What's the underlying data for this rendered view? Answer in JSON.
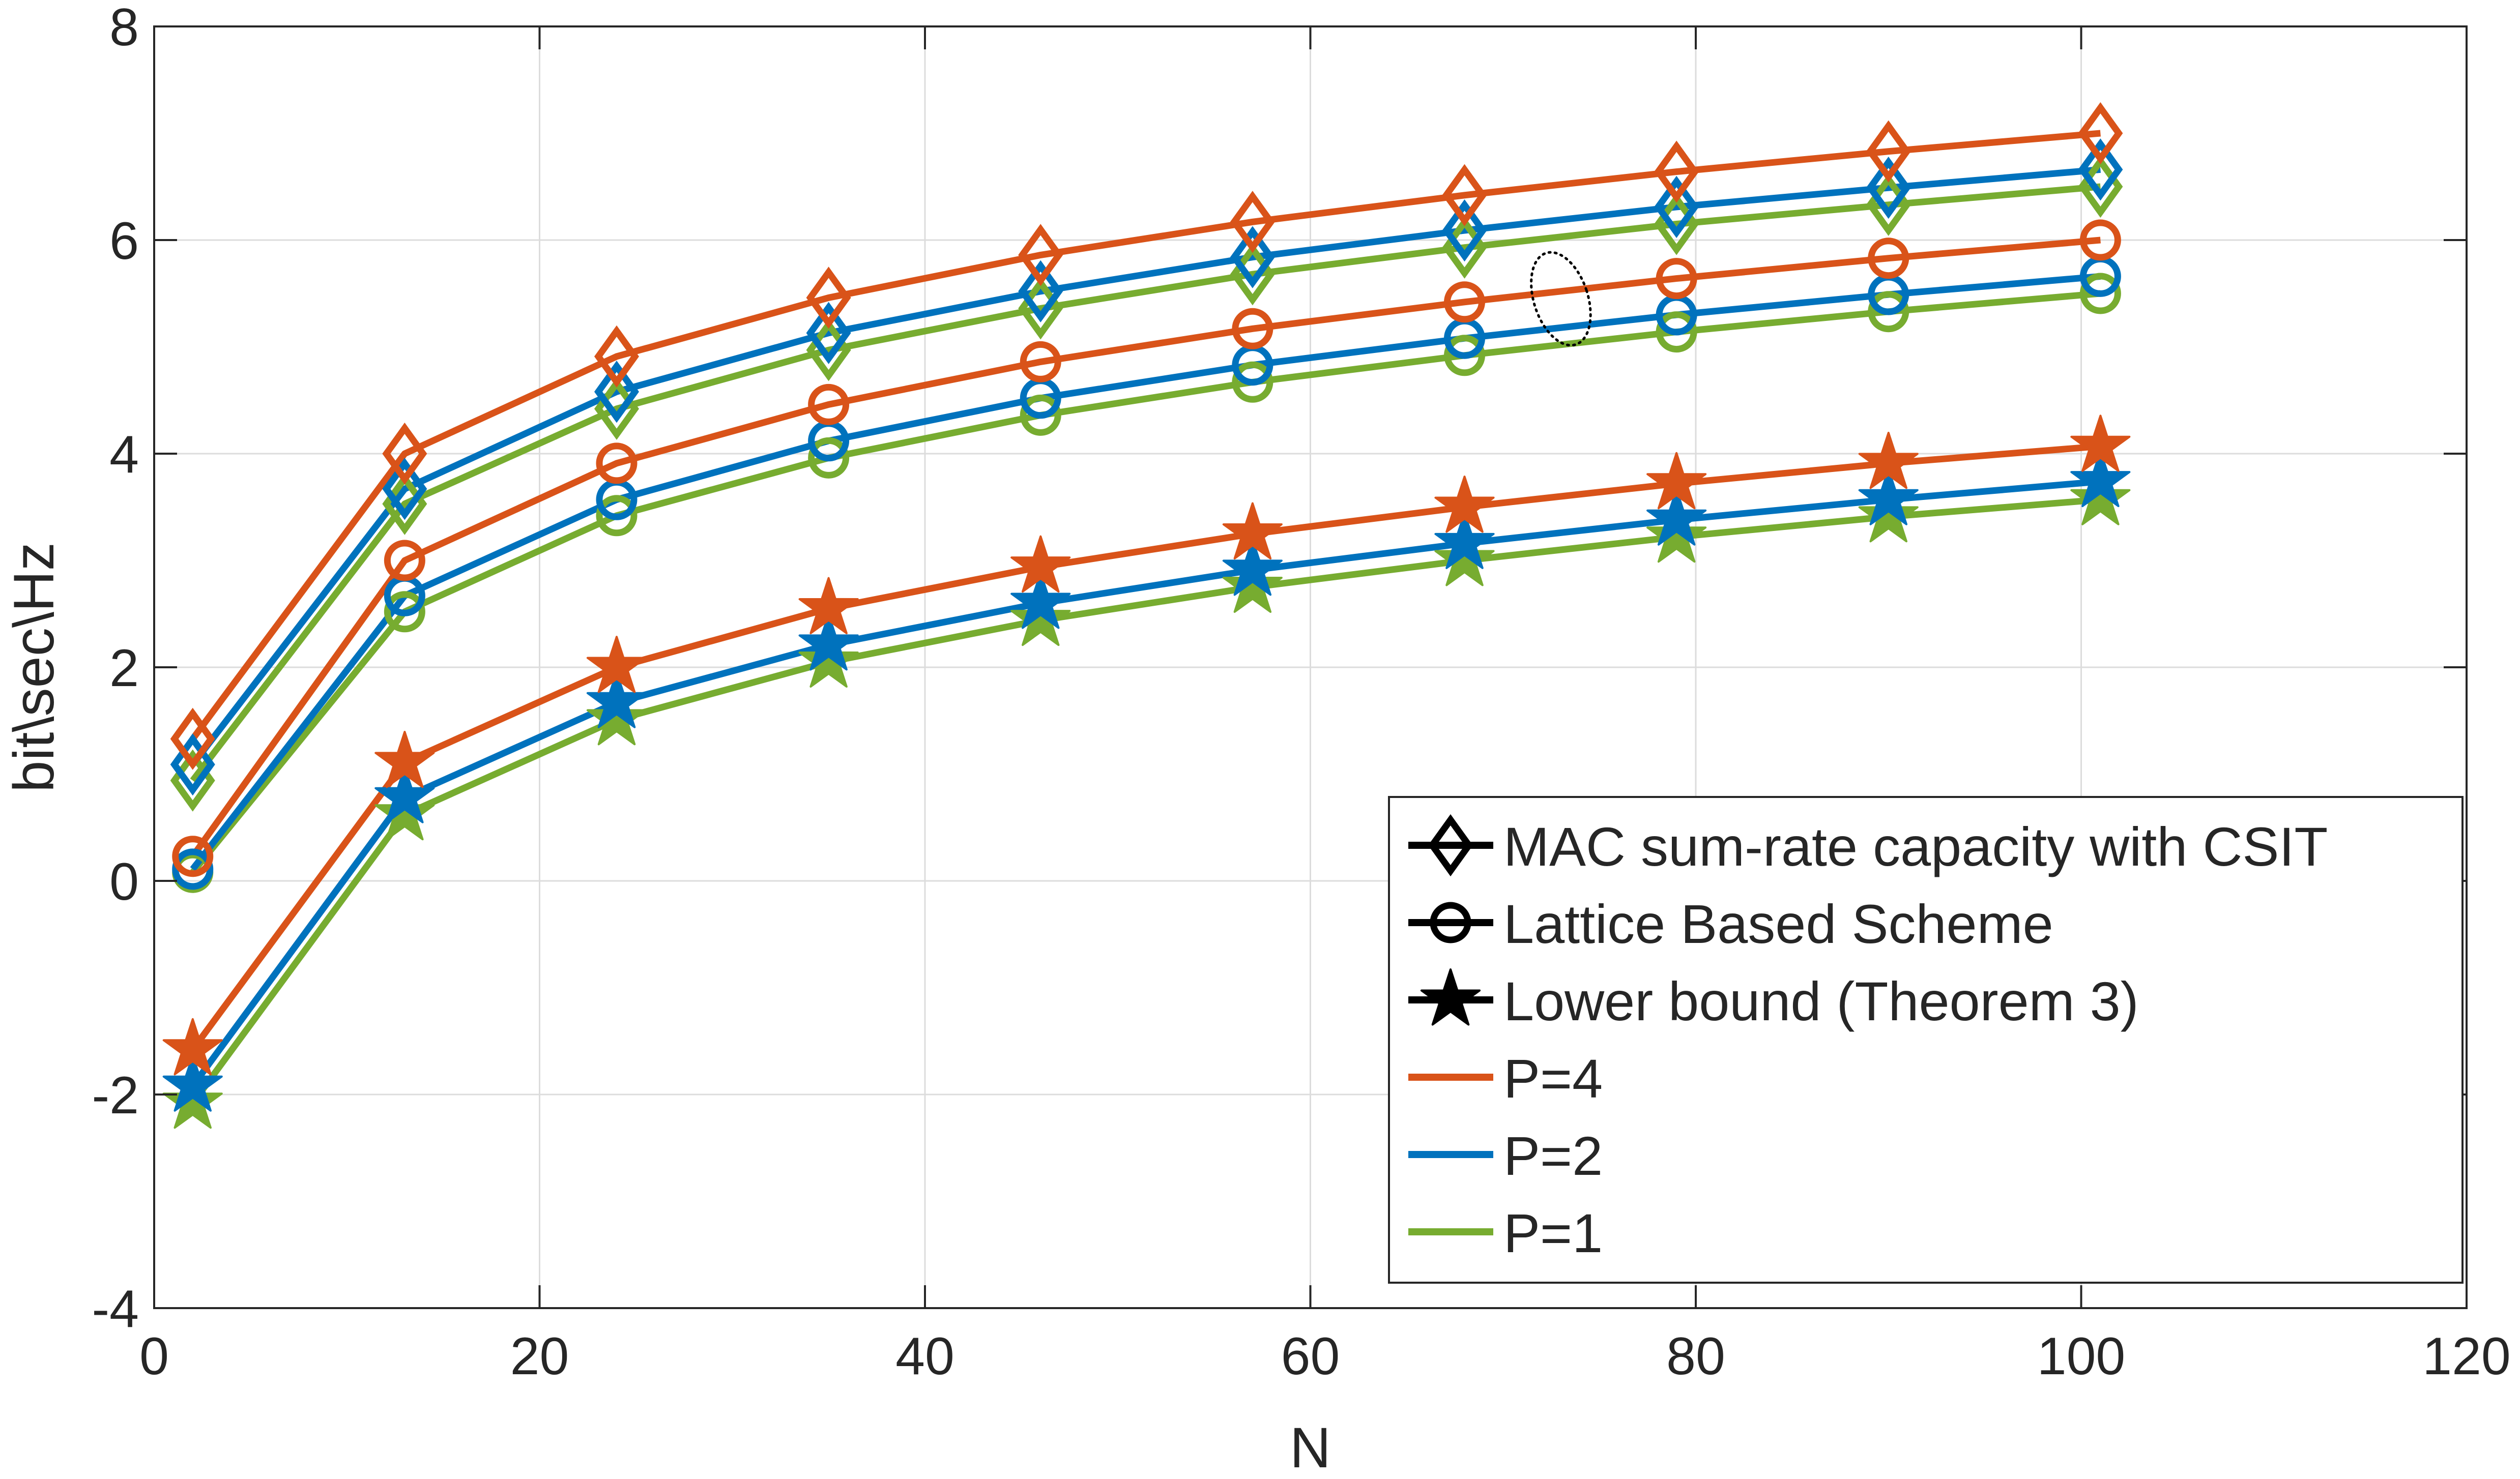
{
  "chart_data": {
    "type": "line",
    "xlabel": "N",
    "ylabel": "bit\\sec\\Hz",
    "xlim": [
      0,
      120
    ],
    "ylim": [
      -4,
      8
    ],
    "xticks": [
      0,
      20,
      40,
      60,
      80,
      100,
      120
    ],
    "xtick_labels": [
      "0",
      "20",
      "40",
      "60",
      "80",
      "100",
      "120"
    ],
    "yticks": [
      -4,
      -2,
      0,
      2,
      4,
      6,
      8
    ],
    "ytick_labels": [
      "-4",
      "-2",
      "0",
      "2",
      "4",
      "6",
      "8"
    ],
    "grid": true,
    "legend_position": "bottom-right",
    "x": [
      2,
      13,
      24,
      35,
      46,
      57,
      68,
      79,
      90,
      101
    ],
    "series": [
      {
        "scheme": "mac",
        "power": "p4",
        "marker": "diamond",
        "color": "#D95319",
        "values": [
          1.33,
          4.0,
          4.91,
          5.46,
          5.86,
          6.17,
          6.42,
          6.64,
          6.83,
          7.0
        ]
      },
      {
        "scheme": "mac",
        "power": "p2",
        "marker": "diamond",
        "color": "#0072BD",
        "values": [
          1.09,
          3.67,
          4.58,
          5.13,
          5.52,
          5.84,
          6.09,
          6.31,
          6.49,
          6.66
        ]
      },
      {
        "scheme": "mac",
        "power": "p1",
        "marker": "diamond",
        "color": "#77AC30",
        "values": [
          0.94,
          3.53,
          4.42,
          4.97,
          5.36,
          5.68,
          5.93,
          6.15,
          6.33,
          6.5
        ]
      },
      {
        "scheme": "lattice",
        "power": "p4",
        "marker": "circle",
        "color": "#D95319",
        "values": [
          0.23,
          3.0,
          3.91,
          4.46,
          4.86,
          5.17,
          5.42,
          5.64,
          5.83,
          6.0
        ]
      },
      {
        "scheme": "lattice",
        "power": "p2",
        "marker": "circle",
        "color": "#0072BD",
        "values": [
          0.11,
          2.67,
          3.57,
          4.12,
          4.52,
          4.83,
          5.08,
          5.3,
          5.49,
          5.66
        ]
      },
      {
        "scheme": "lattice",
        "power": "p1",
        "marker": "circle",
        "color": "#77AC30",
        "values": [
          0.08,
          2.52,
          3.42,
          3.96,
          4.36,
          4.67,
          4.92,
          5.14,
          5.33,
          5.5
        ]
      },
      {
        "scheme": "lower",
        "power": "p4",
        "marker": "star",
        "color": "#D95319",
        "values": [
          -1.58,
          1.11,
          2.0,
          2.55,
          2.94,
          3.25,
          3.5,
          3.72,
          3.91,
          4.07
        ]
      },
      {
        "scheme": "lower",
        "power": "p2",
        "marker": "star",
        "color": "#0072BD",
        "values": [
          -1.92,
          0.78,
          1.67,
          2.21,
          2.6,
          2.91,
          3.16,
          3.38,
          3.57,
          3.74
        ]
      },
      {
        "scheme": "lower",
        "power": "p1",
        "marker": "star",
        "color": "#77AC30",
        "values": [
          -2.08,
          0.62,
          1.51,
          2.05,
          2.44,
          2.75,
          3.0,
          3.22,
          3.41,
          3.57
        ]
      }
    ],
    "legend": [
      {
        "label": "MAC sum-rate capacity with CSIT",
        "marker": "diamond",
        "color": "#000000"
      },
      {
        "label": "Lattice Based Scheme",
        "marker": "circle",
        "color": "#000000"
      },
      {
        "label": "Lower bound (Theorem 3)",
        "marker": "star",
        "color": "#000000"
      },
      {
        "label": "P=4",
        "marker": "none",
        "color": "#D95319"
      },
      {
        "label": "P=2",
        "marker": "none",
        "color": "#0072BD"
      },
      {
        "label": "P=1",
        "marker": "none",
        "color": "#77AC30"
      }
    ],
    "annotation": {
      "shape": "dotted-ellipse",
      "x": 73,
      "y": 5.45,
      "rx": 1.4,
      "ry": 0.45
    }
  }
}
